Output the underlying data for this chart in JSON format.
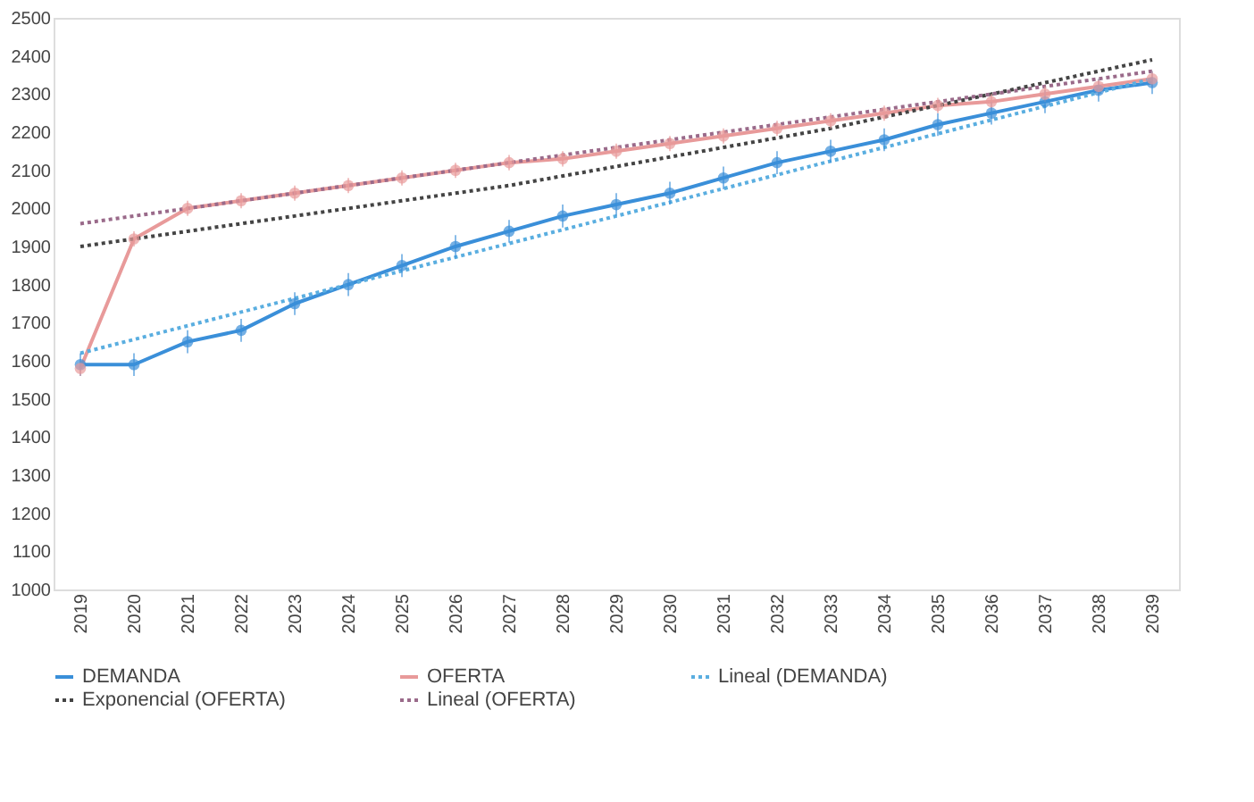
{
  "chart_data": {
    "type": "line",
    "categories": [
      "2019",
      "2020",
      "2021",
      "2022",
      "2023",
      "2024",
      "2025",
      "2026",
      "2027",
      "2028",
      "2029",
      "2030",
      "2031",
      "2032",
      "2033",
      "2034",
      "2035",
      "2036",
      "2037",
      "2038",
      "2039"
    ],
    "series": [
      {
        "name": "DEMANDA",
        "color": "#3a8fd9",
        "marker": "circle",
        "line_style": "solid",
        "values": [
          1590,
          1590,
          1650,
          1680,
          1750,
          1800,
          1850,
          1900,
          1940,
          1980,
          2010,
          2040,
          2080,
          2120,
          2150,
          2180,
          2220,
          2250,
          2280,
          2310,
          2330
        ],
        "errors": [
          30,
          30,
          30,
          30,
          30,
          30,
          30,
          30,
          30,
          30,
          30,
          30,
          30,
          30,
          30,
          30,
          30,
          30,
          30,
          30,
          30
        ]
      },
      {
        "name": "OFERTA",
        "color": "#e89a9a",
        "marker": "circle",
        "line_style": "solid",
        "values": [
          1580,
          1920,
          2000,
          2020,
          2040,
          2060,
          2080,
          2100,
          2120,
          2130,
          2150,
          2170,
          2190,
          2210,
          2230,
          2250,
          2270,
          2280,
          2300,
          2320,
          2340
        ],
        "errors": [
          20,
          20,
          20,
          20,
          20,
          20,
          20,
          20,
          20,
          20,
          20,
          20,
          20,
          20,
          20,
          20,
          20,
          20,
          20,
          20,
          20
        ]
      },
      {
        "name": "Lineal (DEMANDA)",
        "color": "#5aaee0",
        "marker": "none",
        "line_style": "dotted",
        "values": [
          1620,
          1656,
          1692,
          1728,
          1764,
          1800,
          1836,
          1872,
          1908,
          1944,
          1980,
          2016,
          2052,
          2088,
          2124,
          2160,
          2196,
          2232,
          2268,
          2304,
          2340
        ]
      },
      {
        "name": "Exponencial (OFERTA)",
        "color": "#444444",
        "marker": "none",
        "line_style": "dotted",
        "values": [
          1900,
          1920,
          1940,
          1960,
          1980,
          2000,
          2020,
          2040,
          2060,
          2085,
          2110,
          2135,
          2160,
          2185,
          2210,
          2240,
          2270,
          2300,
          2330,
          2360,
          2390
        ]
      },
      {
        "name": "Lineal (OFERTA)",
        "color": "#9a6a8a",
        "marker": "none",
        "line_style": "dotted",
        "values": [
          1960,
          1980,
          2000,
          2020,
          2040,
          2060,
          2080,
          2100,
          2120,
          2140,
          2160,
          2180,
          2200,
          2220,
          2240,
          2260,
          2280,
          2300,
          2320,
          2340,
          2360
        ]
      }
    ],
    "ylim": [
      1000,
      2500
    ],
    "yticks": [
      1000,
      1100,
      1200,
      1300,
      1400,
      1500,
      1600,
      1700,
      1800,
      1900,
      2000,
      2100,
      2200,
      2300,
      2400,
      2500
    ],
    "grid": false,
    "legend": "bottom"
  }
}
